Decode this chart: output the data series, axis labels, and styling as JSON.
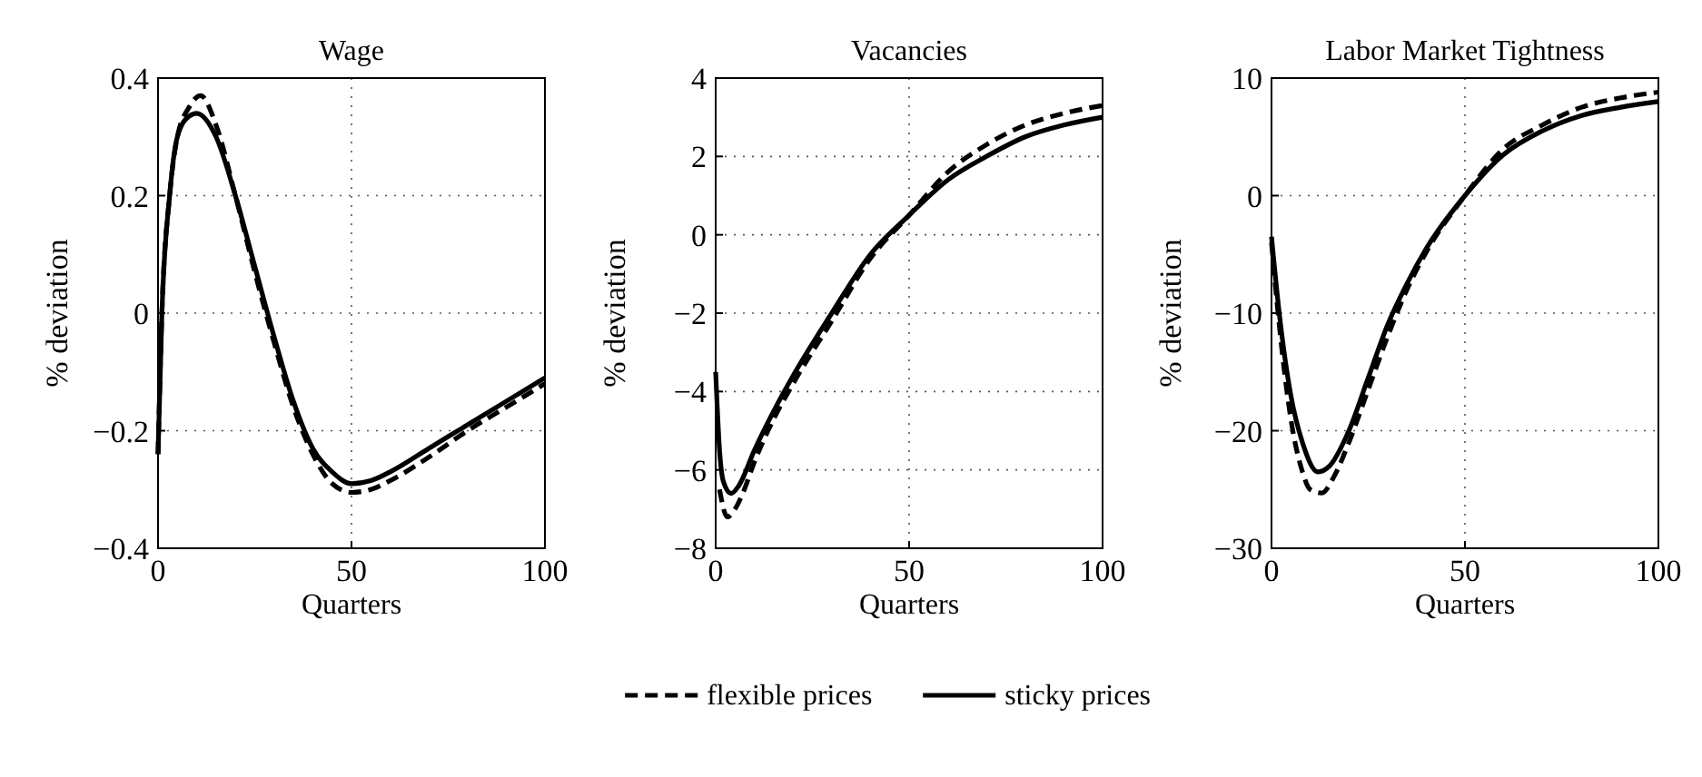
{
  "chart_data": [
    {
      "type": "line",
      "title": "Wage",
      "xlabel": "Quarters",
      "ylabel": "% deviation",
      "xlim": [
        0,
        100
      ],
      "xticks": [
        0,
        50,
        100
      ],
      "ylim": [
        -0.4,
        0.4
      ],
      "yticks": [
        -0.4,
        -0.2,
        0,
        0.2,
        0.4
      ],
      "grid": true,
      "legend": false,
      "series": [
        {
          "color": "#000000",
          "line_style": "dashed",
          "x": [
            0,
            1,
            3,
            5,
            8,
            11,
            15,
            20,
            25,
            30,
            35,
            40,
            45,
            50,
            55,
            60,
            70,
            80,
            90,
            100
          ],
          "values": [
            -0.24,
            0.0,
            0.2,
            0.3,
            0.35,
            0.37,
            0.32,
            0.2,
            0.07,
            -0.05,
            -0.16,
            -0.24,
            -0.29,
            -0.305,
            -0.3,
            -0.285,
            -0.245,
            -0.2,
            -0.16,
            -0.12
          ]
        },
        {
          "color": "#000000",
          "line_style": "solid",
          "x": [
            0,
            1,
            3,
            5,
            8,
            10,
            15,
            20,
            25,
            30,
            35,
            40,
            45,
            50,
            55,
            60,
            70,
            80,
            90,
            100
          ],
          "values": [
            -0.24,
            0.0,
            0.2,
            0.3,
            0.335,
            0.34,
            0.3,
            0.2,
            0.08,
            -0.04,
            -0.15,
            -0.23,
            -0.27,
            -0.29,
            -0.285,
            -0.27,
            -0.23,
            -0.19,
            -0.15,
            -0.11
          ]
        }
      ]
    },
    {
      "type": "line",
      "title": "Vacancies",
      "xlabel": "Quarters",
      "ylabel": "% deviation",
      "xlim": [
        0,
        100
      ],
      "xticks": [
        0,
        50,
        100
      ],
      "ylim": [
        -8,
        4
      ],
      "yticks": [
        -8,
        -6,
        -4,
        -2,
        0,
        2,
        4
      ],
      "grid": true,
      "legend": "bottom",
      "series": [
        {
          "name": "flexible prices",
          "color": "#000000",
          "line_style": "dashed",
          "x": [
            1,
            3,
            5,
            7,
            10,
            15,
            20,
            30,
            40,
            50,
            60,
            70,
            80,
            90,
            100
          ],
          "values": [
            -6.5,
            -7.2,
            -7.0,
            -6.6,
            -5.8,
            -4.7,
            -3.8,
            -2.2,
            -0.6,
            0.5,
            1.6,
            2.3,
            2.8,
            3.1,
            3.3
          ]
        },
        {
          "name": "sticky prices",
          "color": "#000000",
          "line_style": "solid",
          "x": [
            0,
            1,
            2,
            4,
            6,
            10,
            15,
            20,
            30,
            40,
            50,
            60,
            70,
            80,
            90,
            100
          ],
          "values": [
            -3.5,
            -5.5,
            -6.3,
            -6.6,
            -6.4,
            -5.5,
            -4.5,
            -3.6,
            -2.0,
            -0.5,
            0.5,
            1.4,
            2.0,
            2.5,
            2.8,
            3.0
          ]
        }
      ]
    },
    {
      "type": "line",
      "title": "Labor Market Tightness",
      "xlabel": "Quarters",
      "ylabel": "% deviation",
      "xlim": [
        0,
        100
      ],
      "xticks": [
        0,
        50,
        100
      ],
      "ylim": [
        -30,
        10
      ],
      "yticks": [
        -30,
        -20,
        -10,
        0,
        10
      ],
      "grid": true,
      "legend": false,
      "series": [
        {
          "color": "#000000",
          "line_style": "dashed",
          "x": [
            0,
            2,
            5,
            8,
            10,
            13,
            16,
            20,
            25,
            30,
            35,
            40,
            50,
            60,
            70,
            80,
            90,
            100
          ],
          "values": [
            -4,
            -11,
            -19,
            -23.5,
            -25,
            -25.3,
            -24,
            -21,
            -16.5,
            -12,
            -8,
            -4.8,
            0,
            4,
            6,
            7.5,
            8.3,
            8.8
          ]
        },
        {
          "color": "#000000",
          "line_style": "solid",
          "x": [
            0,
            2,
            5,
            8,
            12,
            15,
            20,
            25,
            30,
            35,
            40,
            50,
            60,
            70,
            80,
            90,
            100
          ],
          "values": [
            -3.5,
            -10,
            -17,
            -21,
            -23.5,
            -23,
            -20,
            -15.5,
            -11,
            -7.5,
            -4.5,
            0,
            3.5,
            5.5,
            6.8,
            7.5,
            8
          ]
        }
      ]
    }
  ]
}
